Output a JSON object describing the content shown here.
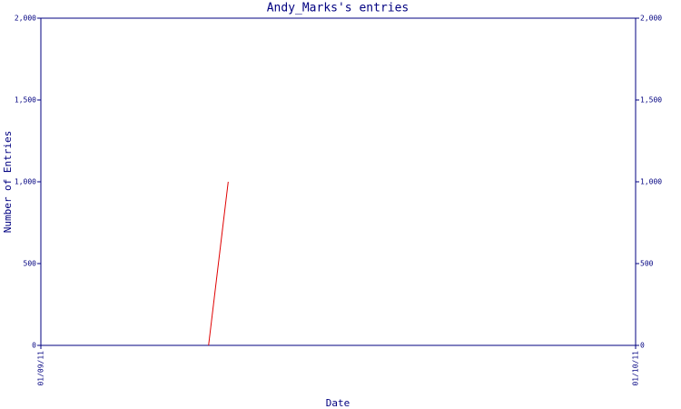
{
  "chart_data": {
    "type": "line",
    "title": "Andy_Marks's entries",
    "x_label": "Date",
    "y_label": "Number of Entries",
    "xlim": [
      0,
      1
    ],
    "xticks": [
      {
        "value": 0,
        "label": "01/09/11"
      },
      {
        "value": 1,
        "label": "01/10/11"
      }
    ],
    "ylim": [
      0,
      2000
    ],
    "yticks": [
      0,
      500,
      {
        "value": 1000,
        "label": "1,000"
      },
      {
        "value": 1500,
        "label": "1,500"
      },
      {
        "value": 2000,
        "label": "2,000"
      }
    ],
    "series": [
      {
        "color": "#e00000",
        "x": [
          0.282,
          0.315
        ],
        "values": [
          0,
          1000
        ]
      }
    ],
    "axis_color": "#000080"
  }
}
